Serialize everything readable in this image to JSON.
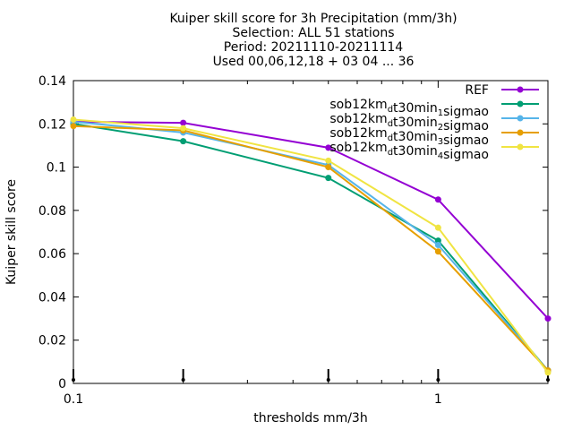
{
  "chart_data": {
    "type": "line",
    "title_lines": [
      "Kuiper skill score  for 3h Precipitation (mm/3h)",
      "Selection: ALL      51 stations",
      "Period: 20211110-20211114",
      "Used 00,06,12,18 + 03 04  ... 36"
    ],
    "xlabel": "thresholds mm/3h",
    "ylabel": "Kuiper skill score",
    "xscale": "log",
    "xlim": [
      0.1,
      2
    ],
    "ylim": [
      0,
      0.14
    ],
    "x_ticks": [
      {
        "value": 0.1,
        "label": "0.1"
      },
      {
        "value": 1,
        "label": "1"
      }
    ],
    "y_ticks": [
      {
        "value": 0,
        "label": "0"
      },
      {
        "value": 0.02,
        "label": "0.02"
      },
      {
        "value": 0.04,
        "label": "0.04"
      },
      {
        "value": 0.06,
        "label": "0.06"
      },
      {
        "value": 0.08,
        "label": "0.08"
      },
      {
        "value": 0.1,
        "label": "0.1"
      },
      {
        "value": 0.12,
        "label": "0.12"
      },
      {
        "value": 0.14,
        "label": "0.14"
      }
    ],
    "x": [
      0.1,
      0.2,
      0.5,
      1,
      2
    ],
    "legend_position": "top-right",
    "series": [
      {
        "name": "REF",
        "parts": [
          {
            "t": "REF"
          }
        ],
        "color": "#9400d3",
        "values": [
          0.121,
          0.1205,
          0.109,
          0.085,
          0.03
        ]
      },
      {
        "name": "sob12km_dt30min_1sigmao",
        "parts": [
          {
            "t": "sob12km"
          },
          {
            "t": "d",
            "sub": true
          },
          {
            "t": "t30min"
          },
          {
            "t": "1",
            "sub": true
          },
          {
            "t": "sigmao"
          }
        ],
        "color": "#009e73",
        "values": [
          0.12,
          0.112,
          0.095,
          0.066,
          0.006
        ]
      },
      {
        "name": "sob12km_dt30min_2sigmao",
        "parts": [
          {
            "t": "sob12km"
          },
          {
            "t": "d",
            "sub": true
          },
          {
            "t": "t30min"
          },
          {
            "t": "2",
            "sub": true
          },
          {
            "t": "sigmao"
          }
        ],
        "color": "#56b4e9",
        "values": [
          0.121,
          0.116,
          0.101,
          0.064,
          0.006
        ]
      },
      {
        "name": "sob12km_dt30min_3sigmao",
        "parts": [
          {
            "t": "sob12km"
          },
          {
            "t": "d",
            "sub": true
          },
          {
            "t": "t30min"
          },
          {
            "t": "3",
            "sub": true
          },
          {
            "t": "sigmao"
          }
        ],
        "color": "#e69f00",
        "values": [
          0.119,
          0.117,
          0.1,
          0.061,
          0.006
        ]
      },
      {
        "name": "sob12km_dt30min_4sigmao",
        "parts": [
          {
            "t": "sob12km"
          },
          {
            "t": "d",
            "sub": true
          },
          {
            "t": "t30min"
          },
          {
            "t": "4",
            "sub": true
          },
          {
            "t": "sigmao"
          }
        ],
        "color": "#f0e442",
        "values": [
          0.122,
          0.118,
          0.103,
          0.072,
          0.005
        ]
      }
    ],
    "sample_markers_x": [
      0.1,
      0.2,
      0.5,
      1,
      2
    ]
  }
}
